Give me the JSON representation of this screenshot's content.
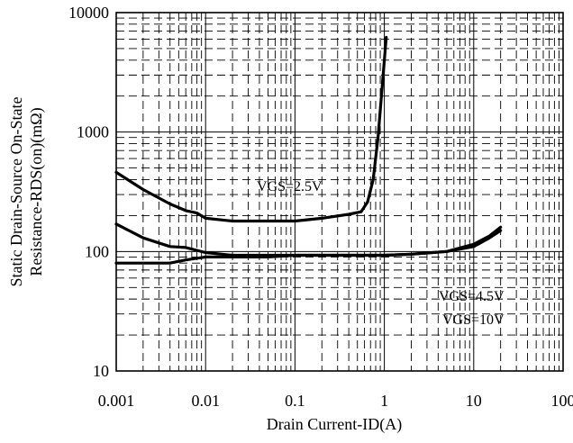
{
  "chart_data": {
    "type": "line",
    "title": "",
    "xlabel": "Drain Current-ID(A)",
    "ylabel_lines": [
      "Static Drain-Source On-State",
      "Resistance-RDS(on)(mΩ)"
    ],
    "x_scale": "log",
    "y_scale": "log",
    "xlim": [
      0.001,
      100
    ],
    "ylim": [
      10,
      10000
    ],
    "x_ticks": [
      "0.001",
      "0.01",
      "0.1",
      "1",
      "10",
      "100"
    ],
    "y_ticks": [
      "10",
      "100",
      "1000",
      "10000"
    ],
    "grid": true,
    "annotations": [
      "VGS=2.5V",
      "VGS=4.5V",
      "VGS=10V"
    ],
    "series": [
      {
        "x": [
          0.001,
          0.002,
          0.004,
          0.006,
          0.008,
          0.01,
          0.02,
          0.05,
          0.1,
          0.2,
          0.4,
          0.55,
          0.65,
          0.75,
          0.85,
          0.95,
          1.05
        ],
        "y": [
          460,
          330,
          250,
          220,
          210,
          190,
          180,
          180,
          180,
          190,
          205,
          215,
          260,
          400,
          900,
          2500,
          6200
        ]
      },
      {
        "x": [
          0.001,
          0.002,
          0.004,
          0.006,
          0.01,
          0.02,
          0.05,
          0.1,
          0.5,
          1,
          2,
          5,
          10,
          15,
          20
        ],
        "y": [
          170,
          130,
          110,
          108,
          98,
          93,
          93,
          93,
          93,
          93,
          95,
          100,
          110,
          130,
          150
        ]
      },
      {
        "x": [
          0.001,
          0.002,
          0.004,
          0.006,
          0.01,
          0.02,
          0.05,
          0.1,
          0.5,
          1,
          2,
          5,
          10,
          15,
          20
        ],
        "y": [
          80,
          80,
          80,
          85,
          90,
          90,
          90,
          93,
          93,
          93,
          95,
          100,
          115,
          135,
          160
        ]
      }
    ]
  }
}
